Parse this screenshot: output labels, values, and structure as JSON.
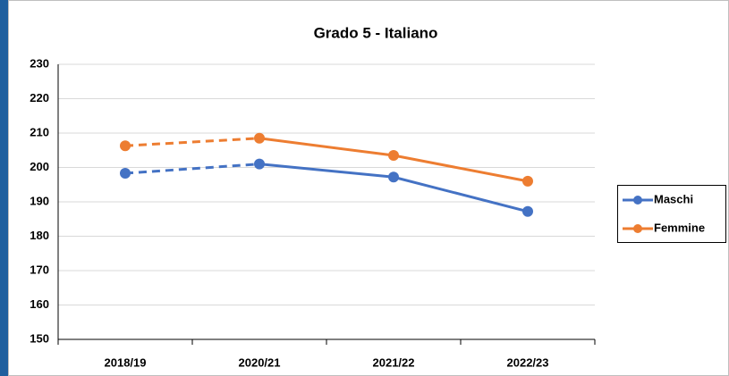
{
  "chart_data": {
    "type": "line",
    "title": "Grado 5 - Italiano",
    "categories": [
      "2018/19",
      "2020/21",
      "2021/22",
      "2022/23"
    ],
    "series": [
      {
        "name": "Maschi",
        "color": "#4472c4",
        "values": [
          198.3,
          201,
          197.2,
          187.2
        ]
      },
      {
        "name": "Femmine",
        "color": "#ed7d31",
        "values": [
          206.3,
          208.5,
          203.5,
          196
        ]
      }
    ],
    "dashed_segments": [
      0
    ],
    "ylim": [
      150,
      230
    ],
    "yticks": [
      150,
      160,
      170,
      180,
      190,
      200,
      210,
      220,
      230
    ],
    "grid": true,
    "legend": "right"
  }
}
